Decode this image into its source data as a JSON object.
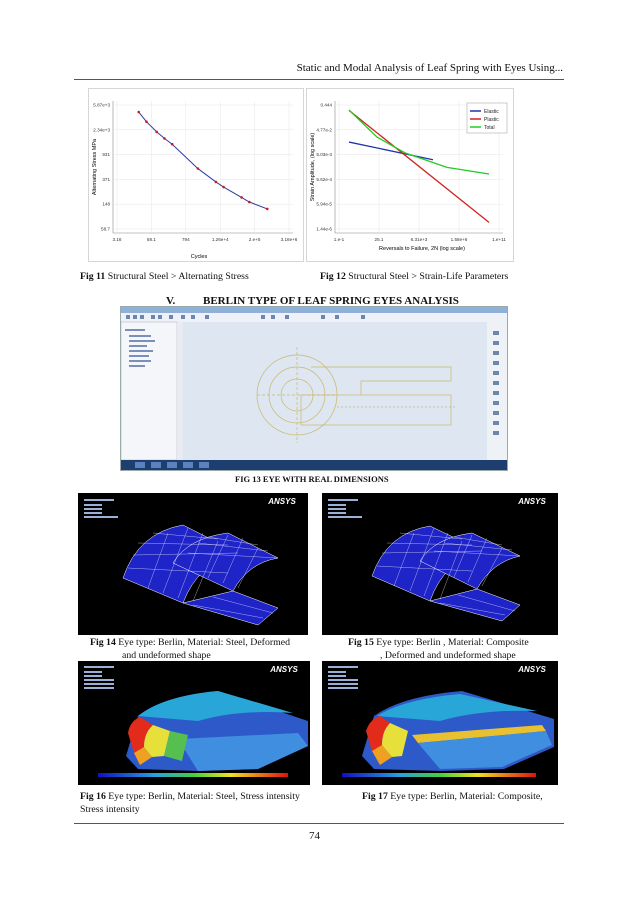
{
  "header": {
    "running_title": "Static and Modal Analysis of Leaf Spring with Eyes Using..."
  },
  "captions": {
    "fig11_label": "Fig 11",
    "fig11_text": " Structural Steel > Alternating Stress",
    "fig12_label": "Fig 12",
    "fig12_text": " Structural Steel > Strain-Life Parameters",
    "fig13": "FIG 13   EYE WITH REAL DIMENSIONS",
    "fig14_label": "Fig 14",
    "fig14_line1": "  Eye type: Berlin, Material: Steel, Deformed",
    "fig14_line2": "and undeformed shape",
    "fig15_label": "Fig 15",
    "fig15_line1": " Eye type: Berlin , Material: Composite",
    "fig15_line2": ", Deformed and undeformed shape",
    "fig16_label": "Fig 16",
    "fig16_line1": " Eye type: Berlin, Material: Steel, Stress intensity",
    "fig16_line2": "Stress intensity",
    "fig17_label": "Fig 17",
    "fig17_text": "  Eye type: Berlin, Material: Composite,"
  },
  "section": {
    "number": "V.",
    "title": "BERLIN TYPE OF LEAF SPRING EYES ANALYSIS"
  },
  "ansys_logo": "ANSYS",
  "page_number": "74",
  "chart_data": [
    {
      "type": "line",
      "title": "",
      "xlabel": "Cycles",
      "ylabel": "Alternating Stress MPa",
      "x_scale": "log",
      "x_ticks": [
        "3.16",
        "58.1",
        "794",
        "1.26e+4",
        "2.e+5",
        "3.16e+6"
      ],
      "y_ticks": [
        "5.87e+3",
        "2.34e+3",
        "931",
        "371",
        "148",
        "58.7"
      ],
      "series": [
        {
          "color": "#d11a1a",
          "points": [
            [
              10,
              3999
            ],
            [
              20,
              2850
            ],
            [
              50,
              1998
            ],
            [
              100,
              1591
            ],
            [
              200,
              1300
            ],
            [
              2000,
              556
            ],
            [
              10000,
              349
            ],
            [
              20000,
              292
            ],
            [
              100000,
              203
            ],
            [
              200000,
              173
            ],
            [
              1000000,
              136
            ]
          ]
        }
      ]
    },
    {
      "type": "line",
      "title": "",
      "xlabel": "Reversals to Failure, 2N (log scale)",
      "ylabel": "Strain Amplitude, (log scale)",
      "x_ticks": [
        "1.e-1",
        "25.1",
        "6.31e+3",
        "1.58e+6",
        "1.e+11"
      ],
      "y_ticks": [
        "0.444",
        "4.77e-2",
        "5.03e-3",
        "5.62e-4",
        "5.94e-5",
        "1.44e-6"
      ],
      "legend_position": "top-right",
      "series": [
        {
          "name": "Elastic",
          "color": "#2233aa",
          "points": [
            [
              1,
              0.0087
            ],
            [
              1000000,
              0.0016
            ]
          ]
        },
        {
          "name": "Plastic",
          "color": "#d22222",
          "points": [
            [
              1,
              0.18
            ],
            [
              10000000000,
              4e-06
            ]
          ]
        },
        {
          "name": "Total",
          "color": "#22cc22",
          "points": [
            [
              1,
              0.188
            ],
            [
              100,
              0.014
            ],
            [
              10000,
              0.0031
            ],
            [
              10000000,
              0.00077
            ],
            [
              10000000000,
              0.00041
            ]
          ]
        }
      ]
    }
  ]
}
